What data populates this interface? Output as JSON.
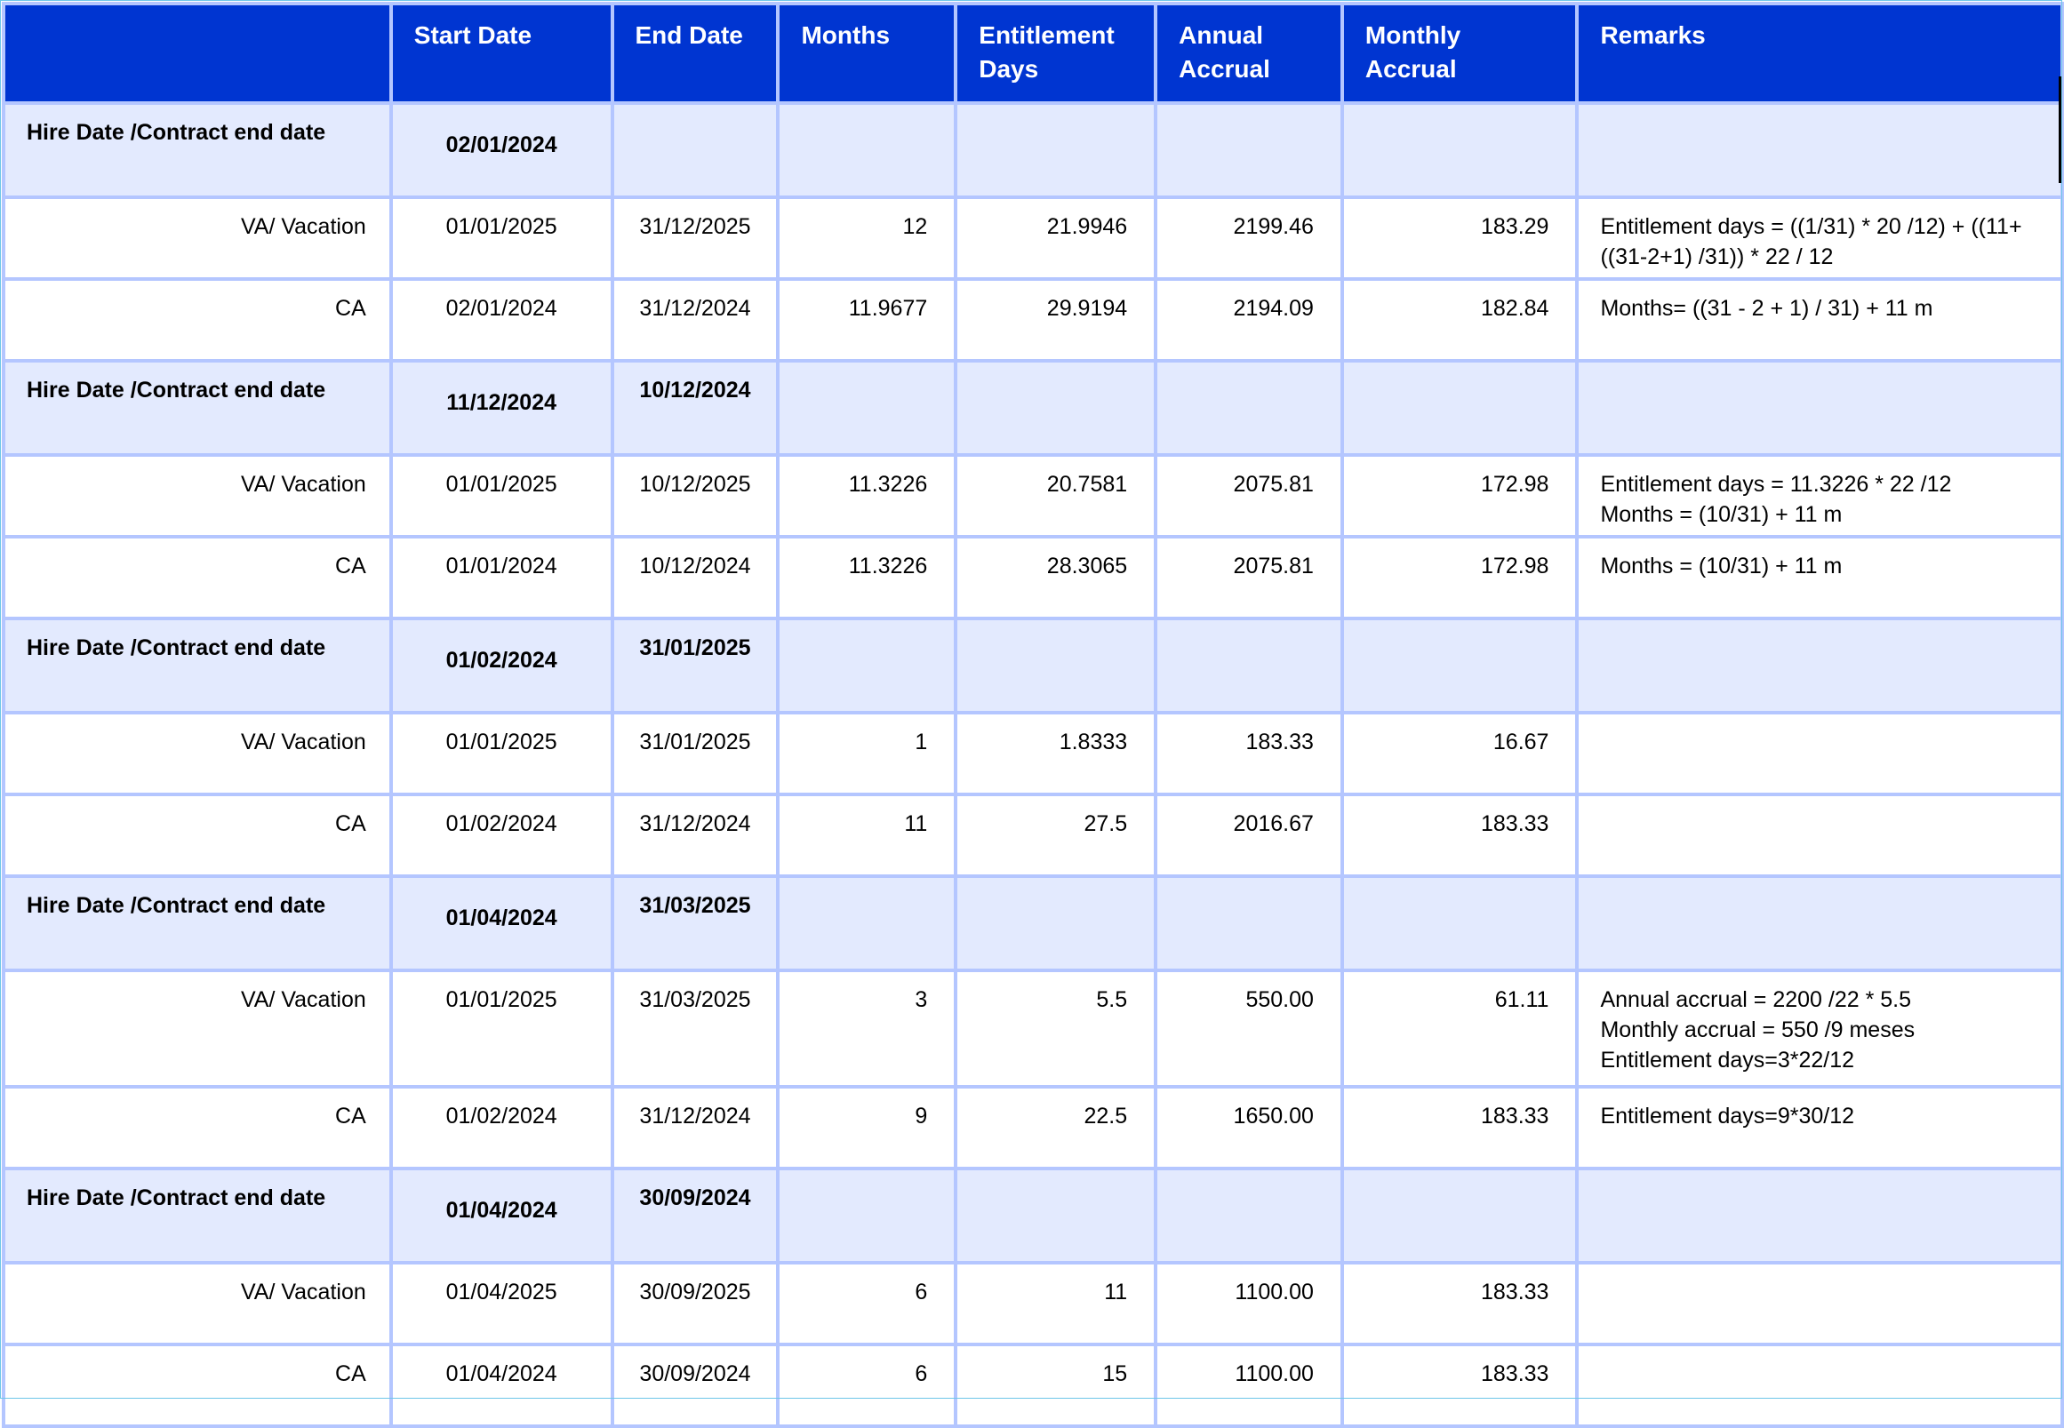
{
  "headers": [
    "",
    "Start Date",
    "End Date",
    "Months",
    "Entitlement Days",
    "Annual Accrual",
    "Monthly Accrual",
    "Remarks"
  ],
  "groups": [
    {
      "label": "Hire Date /Contract end date",
      "start": "02/01/2024",
      "end": "",
      "rows": [
        {
          "type": "VA/ Vacation",
          "start": "01/01/2025",
          "end": "31/12/2025",
          "months": "12",
          "entitlement": "21.9946",
          "annual": "2199.46",
          "monthly": "183.29",
          "remarks": "Entitlement days = ((1/31) * 20 /12) + ((11+ ((31-2+1) /31)) * 22 / 12"
        },
        {
          "type": "CA",
          "start": "02/01/2024",
          "end": "31/12/2024",
          "months": "11.9677",
          "entitlement": "29.9194",
          "annual": "2194.09",
          "monthly": "182.84",
          "remarks": "Months= ((31 - 2 + 1) / 31) + 11 m"
        }
      ]
    },
    {
      "label": "Hire Date /Contract end date",
      "start": "11/12/2024",
      "end": "10/12/2024",
      "rows": [
        {
          "type": "VA/ Vacation",
          "start": "01/01/2025",
          "end": "10/12/2025",
          "months": "11.3226",
          "entitlement": "20.7581",
          "annual": "2075.81",
          "monthly": "172.98",
          "remarks": "Entitlement days = 11.3226 * 22 /12\nMonths = (10/31) + 11 m"
        },
        {
          "type": "CA",
          "start": "01/01/2024",
          "end": "10/12/2024",
          "months": "11.3226",
          "entitlement": "28.3065",
          "annual": "2075.81",
          "monthly": "172.98",
          "remarks": "Months = (10/31) + 11 m"
        }
      ]
    },
    {
      "label": "Hire Date /Contract end date",
      "start": "01/02/2024",
      "end": "31/01/2025",
      "rows": [
        {
          "type": "VA/ Vacation",
          "start": "01/01/2025",
          "end": "31/01/2025",
          "months": "1",
          "entitlement": "1.8333",
          "annual": "183.33",
          "monthly": "16.67",
          "remarks": ""
        },
        {
          "type": "CA",
          "start": "01/02/2024",
          "end": "31/12/2024",
          "months": "11",
          "entitlement": "27.5",
          "annual": "2016.67",
          "monthly": "183.33",
          "remarks": ""
        }
      ]
    },
    {
      "label": "Hire Date /Contract end date",
      "start": "01/04/2024",
      "end": "31/03/2025",
      "rows": [
        {
          "type": "VA/ Vacation",
          "start": "01/01/2025",
          "end": "31/03/2025",
          "months": "3",
          "entitlement": "5.5",
          "annual": "550.00",
          "monthly": "61.11",
          "remarks": "Annual accrual  = 2200 /22 * 5.5\nMonthly accrual = 550 /9 meses\nEntitlement days=3*22/12"
        },
        {
          "type": "CA",
          "start": "01/02/2024",
          "end": "31/12/2024",
          "months": "9",
          "entitlement": "22.5",
          "annual": "1650.00",
          "monthly": "183.33",
          "remarks": "Entitlement days=9*30/12"
        }
      ]
    },
    {
      "label": "Hire Date /Contract end date",
      "start": "01/04/2024",
      "end": "30/09/2024",
      "rows": [
        {
          "type": "VA/ Vacation",
          "start": "01/04/2025",
          "end": "30/09/2025",
          "months": "6",
          "entitlement": "11",
          "annual": "1100.00",
          "monthly": "183.33",
          "remarks": ""
        },
        {
          "type": "CA",
          "start": "01/04/2024",
          "end": "30/09/2024",
          "months": "6",
          "entitlement": "15",
          "annual": "1100.00",
          "monthly": "183.33",
          "remarks": ""
        }
      ]
    }
  ]
}
